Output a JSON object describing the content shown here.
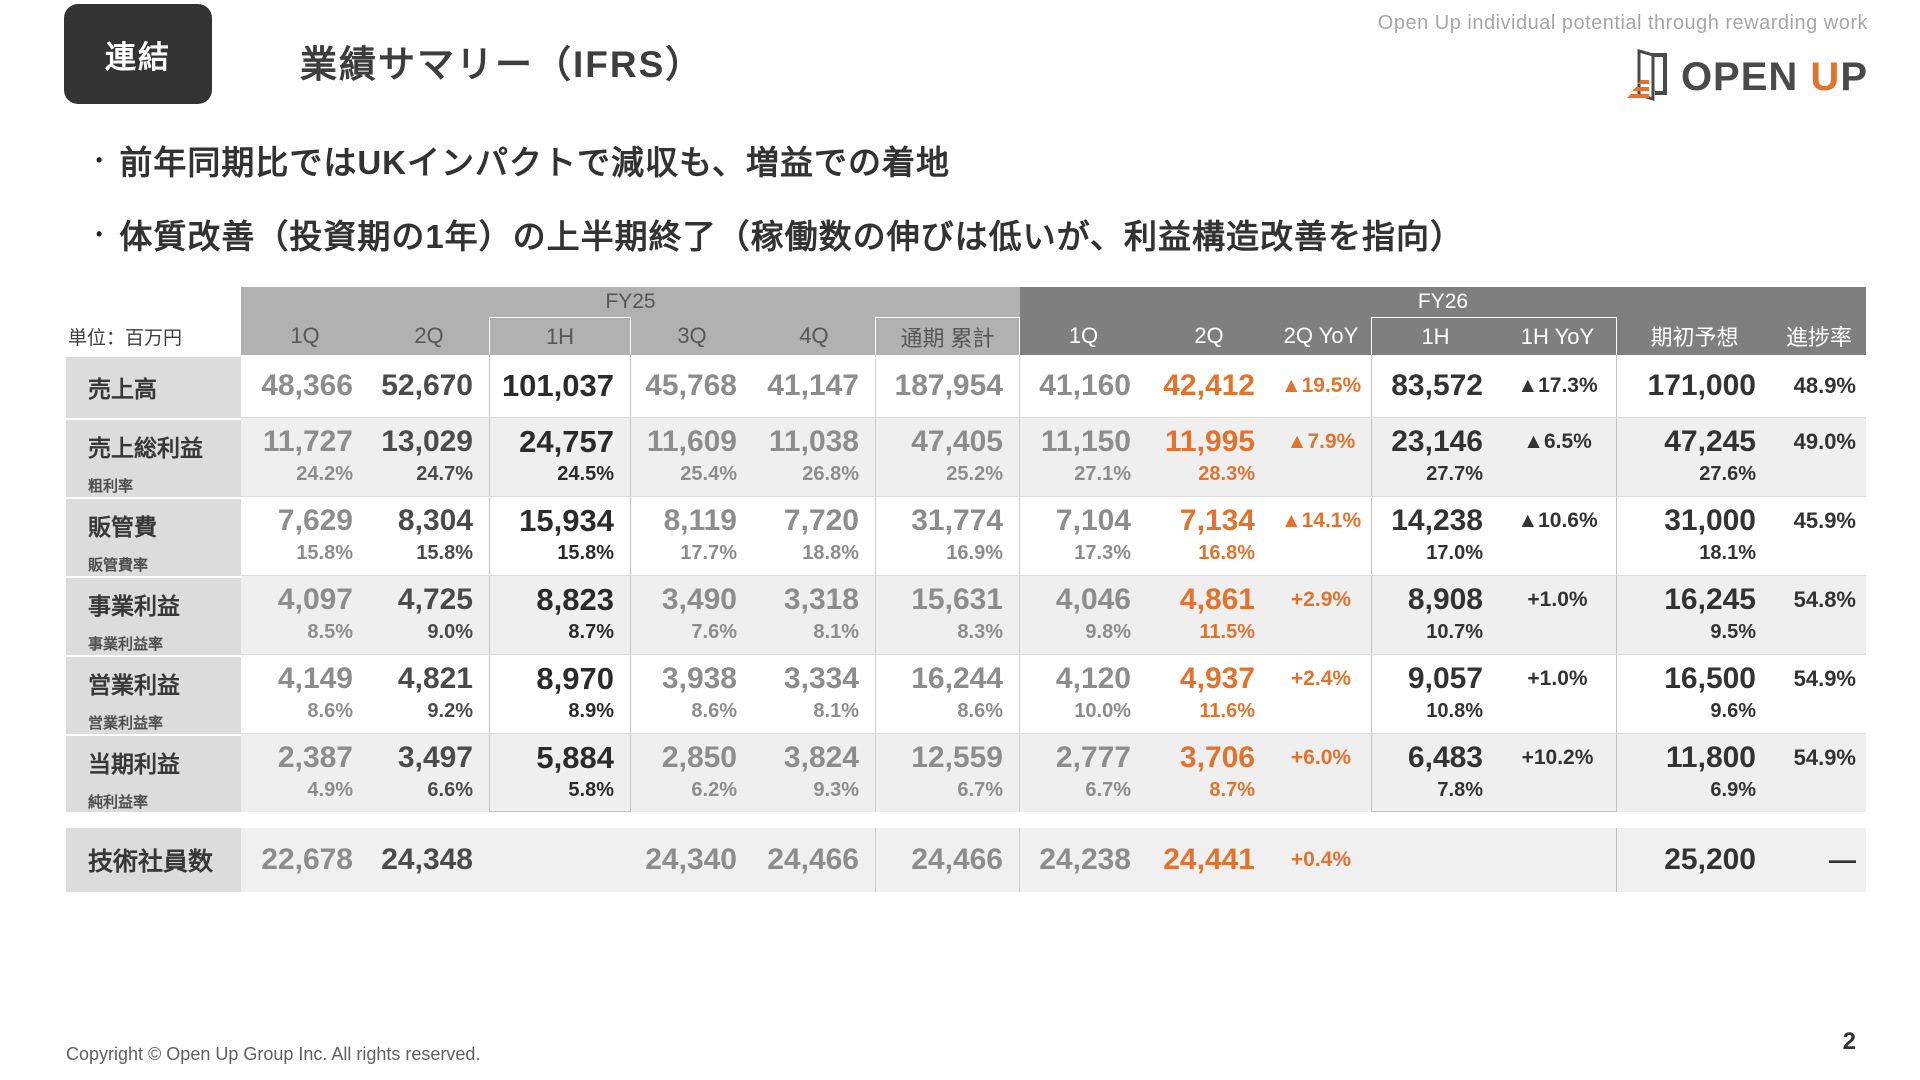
{
  "slide": {
    "badge": "連結",
    "title": "業績サマリー（IFRS）",
    "tagline": "Open Up individual potential through rewarding work",
    "logo": {
      "text_open": "OPEN ",
      "text_u": "U",
      "text_p": "P"
    },
    "bullets": [
      "前年同期比ではUKインパクトで減収も、増益での着地",
      "体質改善（投資期の1年）の上半期終了（稼働数の伸びは低いが、利益構造改善を指向）",
      "•"
    ],
    "copyright": "Copyright © Open Up Group Inc. All rights reserved.",
    "page_number": "2"
  },
  "colors": {
    "accent_orange": "#e2732e",
    "fy25_band": "#b1b1b1",
    "fy26_band": "#7f7f7f",
    "label_bg": "#dcdcdc",
    "stripe_bg": "#efefef",
    "badge_bg": "#333333"
  },
  "table": {
    "unit_label": "単位：百万円",
    "groups": [
      {
        "label": "FY25",
        "span": 6
      },
      {
        "label": "FY26",
        "span": 7
      }
    ],
    "columns": [
      "1Q",
      "2Q",
      "1H",
      "3Q",
      "4Q",
      "通期 累計",
      "1Q",
      "2Q",
      "2Q YoY",
      "1H",
      "1H YoY",
      "期初予想",
      "進捗率"
    ],
    "rows": [
      {
        "label": "売上高",
        "sublabel": null,
        "values": [
          "48,366",
          "52,670",
          "101,037",
          "45,768",
          "41,147",
          "187,954",
          "41,160",
          "42,412",
          "▲19.5%",
          "83,572",
          "▲17.3%",
          "171,000",
          "48.9%"
        ],
        "rates": null
      },
      {
        "label": "売上総利益",
        "sublabel": "粗利率",
        "values": [
          "11,727",
          "13,029",
          "24,757",
          "11,609",
          "11,038",
          "47,405",
          "11,150",
          "11,995",
          "▲7.9%",
          "23,146",
          "▲6.5%",
          "47,245",
          "49.0%"
        ],
        "rates": [
          "24.2%",
          "24.7%",
          "24.5%",
          "25.4%",
          "26.8%",
          "25.2%",
          "27.1%",
          "28.3%",
          "",
          "27.7%",
          "",
          "27.6%",
          ""
        ]
      },
      {
        "label": "販管費",
        "sublabel": "販管費率",
        "values": [
          "7,629",
          "8,304",
          "15,934",
          "8,119",
          "7,720",
          "31,774",
          "7,104",
          "7,134",
          "▲14.1%",
          "14,238",
          "▲10.6%",
          "31,000",
          "45.9%"
        ],
        "rates": [
          "15.8%",
          "15.8%",
          "15.8%",
          "17.7%",
          "18.8%",
          "16.9%",
          "17.3%",
          "16.8%",
          "",
          "17.0%",
          "",
          "18.1%",
          ""
        ]
      },
      {
        "label": "事業利益",
        "sublabel": "事業利益率",
        "values": [
          "4,097",
          "4,725",
          "8,823",
          "3,490",
          "3,318",
          "15,631",
          "4,046",
          "4,861",
          "+2.9%",
          "8,908",
          "+1.0%",
          "16,245",
          "54.8%"
        ],
        "rates": [
          "8.5%",
          "9.0%",
          "8.7%",
          "7.6%",
          "8.1%",
          "8.3%",
          "9.8%",
          "11.5%",
          "",
          "10.7%",
          "",
          "9.5%",
          ""
        ]
      },
      {
        "label": "営業利益",
        "sublabel": "営業利益率",
        "values": [
          "4,149",
          "4,821",
          "8,970",
          "3,938",
          "3,334",
          "16,244",
          "4,120",
          "4,937",
          "+2.4%",
          "9,057",
          "+1.0%",
          "16,500",
          "54.9%"
        ],
        "rates": [
          "8.6%",
          "9.2%",
          "8.9%",
          "8.6%",
          "8.1%",
          "8.6%",
          "10.0%",
          "11.6%",
          "",
          "10.8%",
          "",
          "9.6%",
          ""
        ]
      },
      {
        "label": "当期利益",
        "sublabel": "純利益率",
        "values": [
          "2,387",
          "3,497",
          "5,884",
          "2,850",
          "3,824",
          "12,559",
          "2,777",
          "3,706",
          "+6.0%",
          "6,483",
          "+10.2%",
          "11,800",
          "54.9%"
        ],
        "rates": [
          "4.9%",
          "6.6%",
          "5.8%",
          "6.2%",
          "9.3%",
          "6.7%",
          "6.7%",
          "8.7%",
          "",
          "7.8%",
          "",
          "6.9%",
          ""
        ]
      }
    ],
    "employee_row": {
      "label": "技術社員数",
      "values": [
        "22,678",
        "24,348",
        "",
        "24,340",
        "24,466",
        "24,466",
        "24,238",
        "24,441",
        "+0.4%",
        "",
        "",
        "25,200",
        "—"
      ]
    }
  }
}
